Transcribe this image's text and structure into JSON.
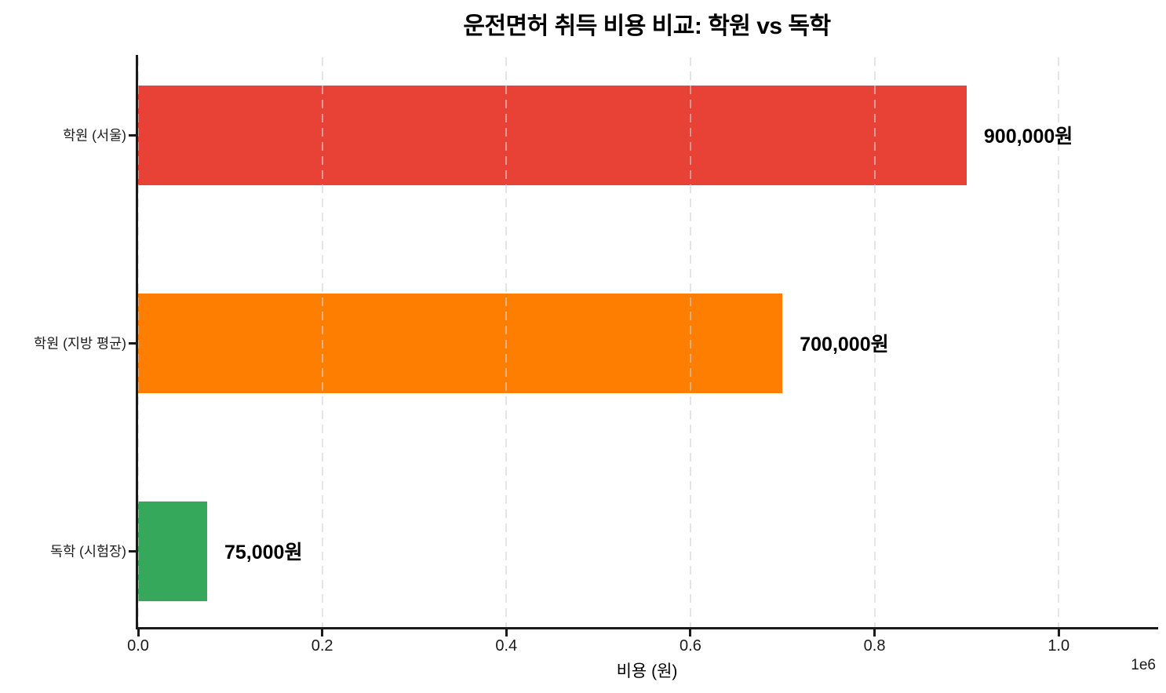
{
  "chart_data": {
    "type": "bar",
    "orientation": "horizontal",
    "title": "운전면허 취득 비용 비교: 학원 vs 독학",
    "xlabel": "비용 (원)",
    "ylabel": "",
    "categories": [
      "학원 (서울)",
      "학원 (지방 평균)",
      "독학 (시험장)"
    ],
    "values": [
      900000,
      700000,
      75000
    ],
    "bars": [
      {
        "label": "학원 (서울)",
        "value": 900000,
        "display_value": "900,000원",
        "color": "#e84135"
      },
      {
        "label": "학원 (지방 평균)",
        "value": 700000,
        "display_value": "700,000원",
        "color": "#fd7e00"
      },
      {
        "label": "독학 (시험장)",
        "value": 75000,
        "display_value": "75,000원",
        "color": "#35a85b"
      }
    ],
    "x_axis": {
      "min": 0,
      "max": 1105500,
      "ticks": [
        0,
        200000,
        400000,
        600000,
        800000,
        1000000
      ],
      "tick_labels": [
        "0.0",
        "0.2",
        "0.4",
        "0.6",
        "0.8",
        "1.0"
      ],
      "offset_label": "1e6"
    },
    "grid": {
      "axis": "x",
      "style": "dashed",
      "color": "#d3d3d3",
      "position": "above-bars"
    },
    "legend": "none",
    "spine_color": "#1a1a1a",
    "background": "#ffffff"
  }
}
